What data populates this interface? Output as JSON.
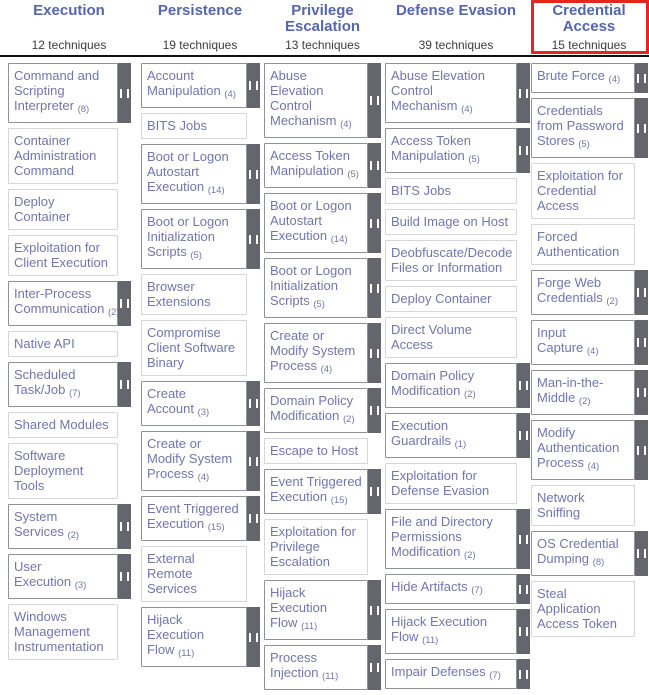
{
  "colors": {
    "header_text": "#5566ab",
    "technique_text": "#7276ab",
    "subtechnique_bar": "#63666d",
    "highlight_red": "#e8241f",
    "header_divider": "#111111"
  },
  "icons": {
    "subtechniques_expand_icon": "double-vertical-bars"
  },
  "matrix": {
    "columns": [
      {
        "tactic": "Execution",
        "count_label": "12 techniques",
        "highlighted": false,
        "techniques": [
          {
            "name": "Command and Scripting Interpreter",
            "count": "(8)",
            "subs": true
          },
          {
            "name": "Container Administration Command",
            "count": null,
            "subs": false
          },
          {
            "name": "Deploy Container",
            "count": null,
            "subs": false
          },
          {
            "name": "Exploitation for Client Execution",
            "count": null,
            "subs": false
          },
          {
            "name": "Inter-Process Communication",
            "count": "(2)",
            "subs": true
          },
          {
            "name": "Native API",
            "count": null,
            "subs": false
          },
          {
            "name": "Scheduled Task/Job",
            "count": "(7)",
            "subs": true
          },
          {
            "name": "Shared Modules",
            "count": null,
            "subs": false
          },
          {
            "name": "Software Deployment Tools",
            "count": null,
            "subs": false
          },
          {
            "name": "System Services",
            "count": "(2)",
            "subs": true
          },
          {
            "name": "User Execution",
            "count": "(3)",
            "subs": true
          },
          {
            "name": "Windows Management Instrumentation",
            "count": null,
            "subs": false
          }
        ]
      },
      {
        "tactic": "Persistence",
        "count_label": "19 techniques",
        "highlighted": false,
        "techniques": [
          {
            "name": "Account Manipulation",
            "count": "(4)",
            "subs": true
          },
          {
            "name": "BITS Jobs",
            "count": null,
            "subs": false
          },
          {
            "name": "Boot or Logon Autostart Execution",
            "count": "(14)",
            "subs": true
          },
          {
            "name": "Boot or Logon Initialization Scripts",
            "count": "(5)",
            "subs": true
          },
          {
            "name": "Browser Extensions",
            "count": null,
            "subs": false
          },
          {
            "name": "Compromise Client Software Binary",
            "count": null,
            "subs": false
          },
          {
            "name": "Create Account",
            "count": "(3)",
            "subs": true
          },
          {
            "name": "Create or Modify System Process",
            "count": "(4)",
            "subs": true
          },
          {
            "name": "Event Triggered Execution",
            "count": "(15)",
            "subs": true
          },
          {
            "name": "External Remote Services",
            "count": null,
            "subs": false
          },
          {
            "name": "Hijack Execution Flow",
            "count": "(11)",
            "subs": true
          }
        ]
      },
      {
        "tactic": "Privilege Escalation",
        "count_label": "13 techniques",
        "highlighted": false,
        "techniques": [
          {
            "name": "Abuse Elevation Control Mechanism",
            "count": "(4)",
            "subs": true
          },
          {
            "name": "Access Token Manipulation",
            "count": "(5)",
            "subs": true
          },
          {
            "name": "Boot or Logon Autostart Execution",
            "count": "(14)",
            "subs": true
          },
          {
            "name": "Boot or Logon Initialization Scripts",
            "count": "(5)",
            "subs": true
          },
          {
            "name": "Create or Modify System Process",
            "count": "(4)",
            "subs": true
          },
          {
            "name": "Domain Policy Modification",
            "count": "(2)",
            "subs": true
          },
          {
            "name": "Escape to Host",
            "count": null,
            "subs": false
          },
          {
            "name": "Event Triggered Execution",
            "count": "(15)",
            "subs": true
          },
          {
            "name": "Exploitation for Privilege Escalation",
            "count": null,
            "subs": false
          },
          {
            "name": "Hijack Execution Flow",
            "count": "(11)",
            "subs": true
          },
          {
            "name": "Process Injection",
            "count": "(11)",
            "subs": true
          }
        ]
      },
      {
        "tactic": "Defense Evasion",
        "count_label": "39 techniques",
        "highlighted": false,
        "techniques": [
          {
            "name": "Abuse Elevation Control Mechanism",
            "count": "(4)",
            "subs": true
          },
          {
            "name": "Access Token Manipulation",
            "count": "(5)",
            "subs": true
          },
          {
            "name": "BITS Jobs",
            "count": null,
            "subs": false
          },
          {
            "name": "Build Image on Host",
            "count": null,
            "subs": false
          },
          {
            "name": "Deobfuscate/Decode Files or Information",
            "count": null,
            "subs": false
          },
          {
            "name": "Deploy Container",
            "count": null,
            "subs": false
          },
          {
            "name": "Direct Volume Access",
            "count": null,
            "subs": false
          },
          {
            "name": "Domain Policy Modification",
            "count": "(2)",
            "subs": true
          },
          {
            "name": "Execution Guardrails",
            "count": "(1)",
            "subs": true
          },
          {
            "name": "Exploitation for Defense Evasion",
            "count": null,
            "subs": false
          },
          {
            "name": "File and Directory Permissions Modification",
            "count": "(2)",
            "subs": true
          },
          {
            "name": "Hide Artifacts",
            "count": "(7)",
            "subs": true
          },
          {
            "name": "Hijack Execution Flow",
            "count": "(11)",
            "subs": true
          },
          {
            "name": "Impair Defenses",
            "count": "(7)",
            "subs": true
          }
        ]
      },
      {
        "tactic": "Credential Access",
        "count_label": "15 techniques",
        "highlighted": true,
        "techniques": [
          {
            "name": "Brute Force",
            "count": "(4)",
            "subs": true
          },
          {
            "name": "Credentials from Password Stores",
            "count": "(5)",
            "subs": true
          },
          {
            "name": "Exploitation for Credential Access",
            "count": null,
            "subs": false
          },
          {
            "name": "Forced Authentication",
            "count": null,
            "subs": false
          },
          {
            "name": "Forge Web Credentials",
            "count": "(2)",
            "subs": true
          },
          {
            "name": "Input Capture",
            "count": "(4)",
            "subs": true
          },
          {
            "name": "Man-in-the-Middle",
            "count": "(2)",
            "subs": true
          },
          {
            "name": "Modify Authentication Process",
            "count": "(4)",
            "subs": true
          },
          {
            "name": "Network Sniffing",
            "count": null,
            "subs": false
          },
          {
            "name": "OS Credential Dumping",
            "count": "(8)",
            "subs": true
          },
          {
            "name": "Steal Application Access Token",
            "count": null,
            "subs": false
          }
        ]
      }
    ]
  }
}
